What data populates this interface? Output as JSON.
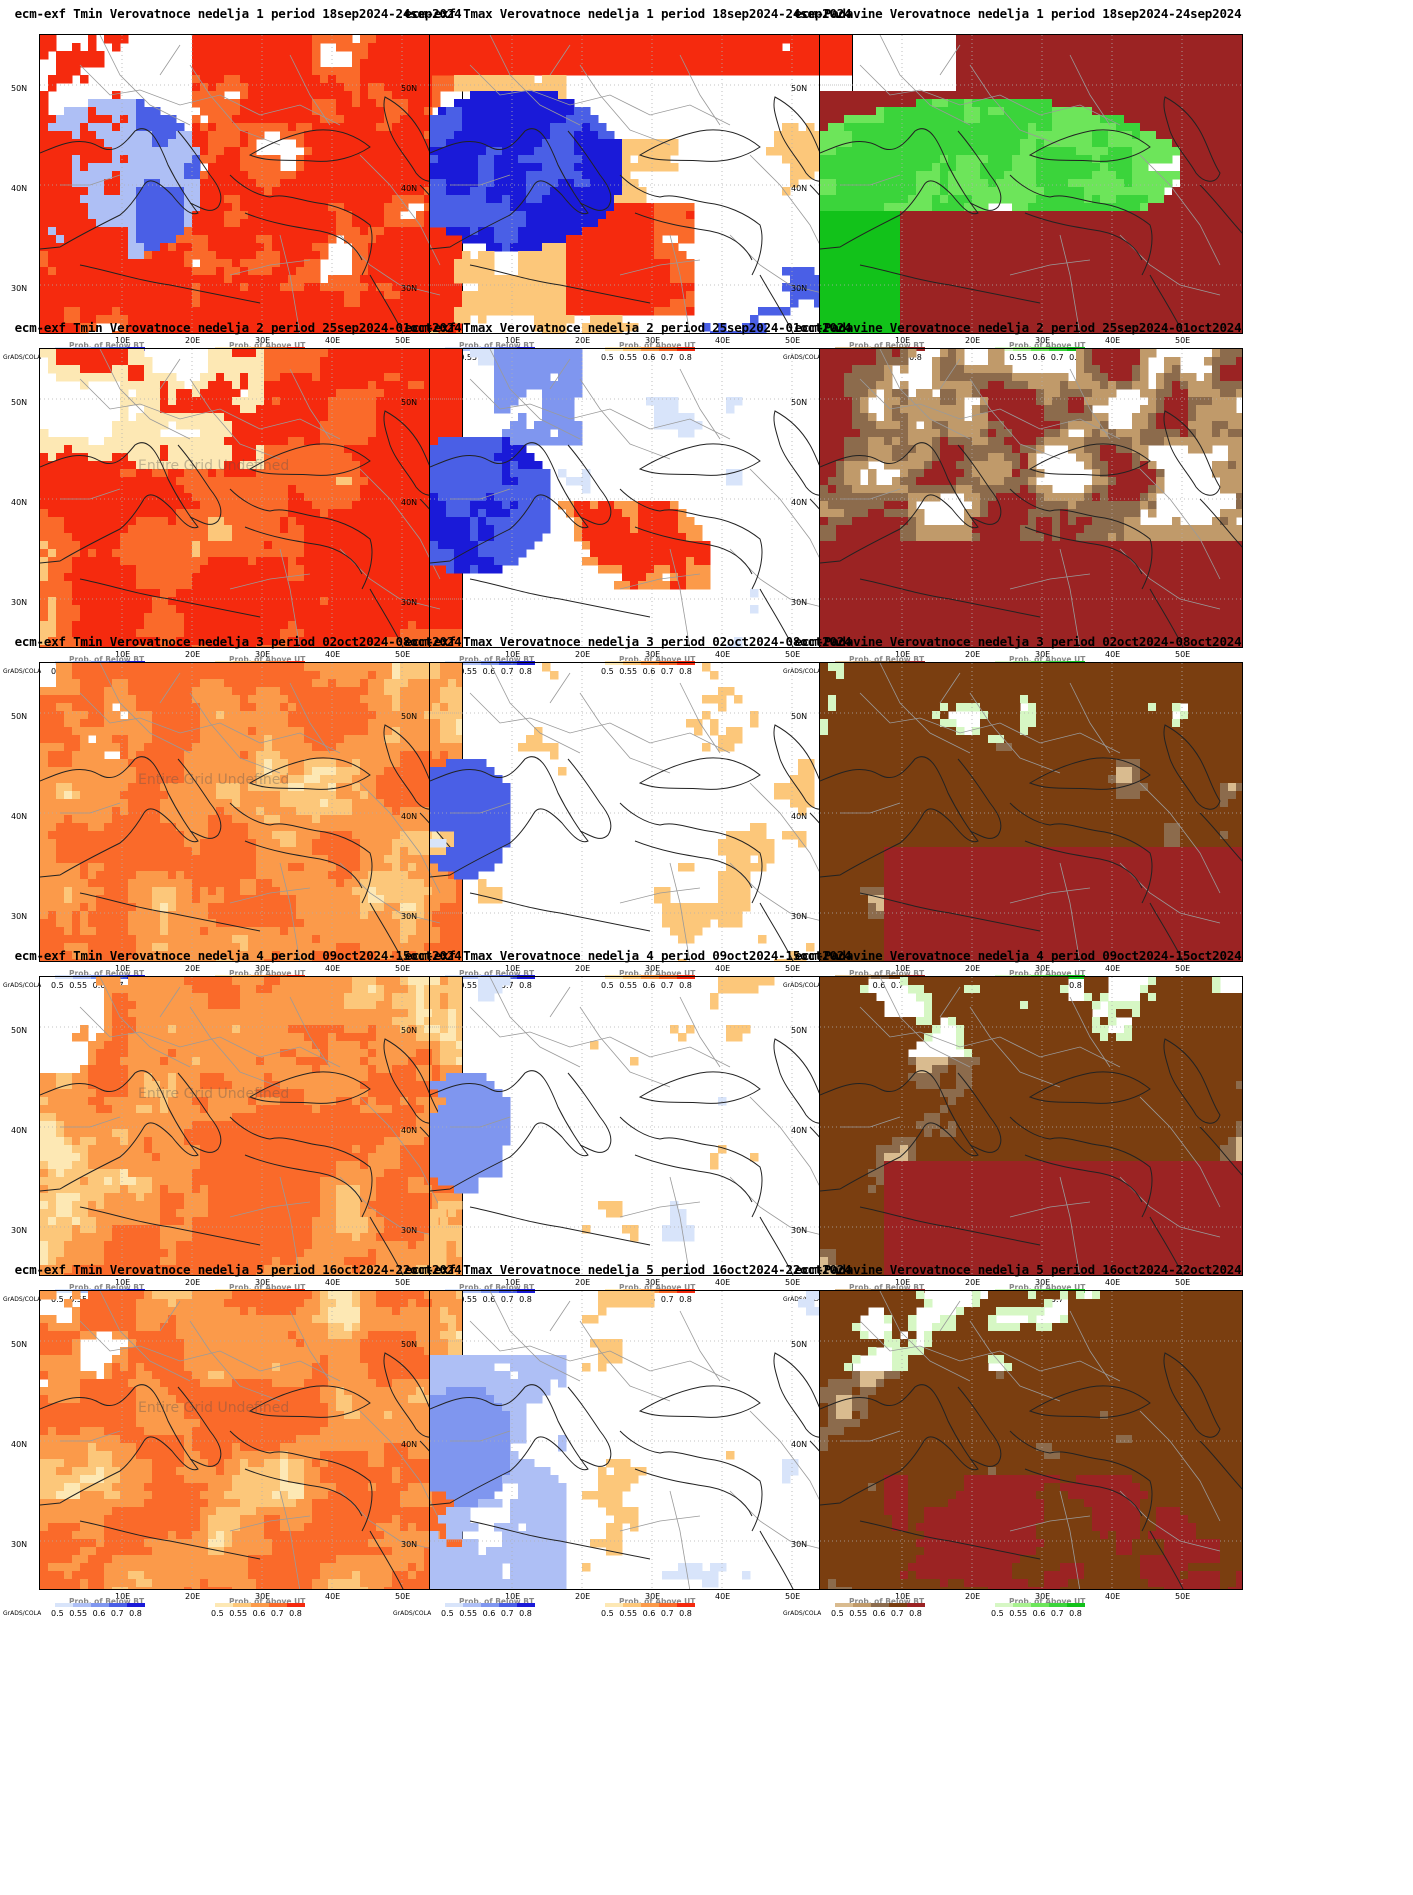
{
  "legend": {
    "below_label": "Prob. of Below BT",
    "above_label": "Prob. of Above UT",
    "ticks_below": "0.5 0.55 0.6 0.7 0.8",
    "ticks_above": "0.5 0.55 0.6 0.7 0.8",
    "credit": "GrADS/COLA"
  },
  "axes": {
    "lat_labels": [
      "50N",
      "40N",
      "30N"
    ],
    "lon_labels": [
      "10E",
      "20E",
      "30E",
      "40E",
      "50E"
    ]
  },
  "watermark": "Entire Grid Undefined",
  "colors": {
    "tmin_above": [
      "#fde8b4",
      "#fcc77a",
      "#fb9a4a",
      "#fa6a2a",
      "#f52a0e"
    ],
    "tmax_below": [
      "#d8e4fa",
      "#aebff5",
      "#7f96ef",
      "#4a5fe6",
      "#1a1ad8"
    ],
    "tmax_above": [
      "#fde8b4",
      "#fcc77a",
      "#fb9a4a",
      "#fa6a2a",
      "#f52a0e"
    ],
    "prec_below": [
      "#d9bb8f",
      "#c09a6a",
      "#8c6b4c",
      "#7a3e10",
      "#9b2323"
    ],
    "prec_above": [
      "#d6f7c4",
      "#a8f08f",
      "#6de55a",
      "#3bd43b",
      "#12c21a"
    ],
    "coast": "#222222",
    "border": "#9a9a9a"
  },
  "rows": [
    {
      "tmin_title": "ecm-exf Tmin Verovatnoce nedelja 1 period 18sep2024-24sep2024",
      "tmax_title": "ecm-exf Tmax Verovatnoce nedelja 1 period 18sep2024-24sep2024",
      "prec_title": "ecm-Padavine Verovatnoce nedelja 1 period 18sep2024-24sep2024",
      "tmin_level": 4,
      "tmax_mix": "strong",
      "prec_mix": "green",
      "watermark": false
    },
    {
      "tmin_title": "ecm-exf Tmin Verovatnoce nedelja 2 period 25sep2024-01oct2024",
      "tmax_title": "ecm-exf Tmax Verovatnoce nedelja 2 period 25sep2024-01oct2024",
      "prec_title": "ecm-Padavine Verovatnoce nedelja 2 period 25sep2024-01oct2024",
      "tmin_level": 4,
      "tmax_mix": "medium",
      "prec_mix": "brown-white",
      "watermark": true
    },
    {
      "tmin_title": "ecm-exf Tmin Verovatnoce nedelja 3 period 02oct2024-08oct2024",
      "tmax_title": "ecm-exf Tmax Verovatnoce nedelja 3 period 02oct2024-08oct2024",
      "prec_title": "ecm-Padavine Verovatnoce nedelja 3 period 02oct2024-08oct2024",
      "tmin_level": 3,
      "tmax_mix": "weak",
      "prec_mix": "brown",
      "watermark": true
    },
    {
      "tmin_title": "ecm-exf Tmin Verovatnoce nedelja 4 period 09oct2024-15oct2024",
      "tmax_title": "ecm-exf Tmax Verovatnoce nedelja 4 period 09oct2024-15oct2024",
      "prec_title": "ecm-Padavine Verovatnoce nedelja 4 period 09oct2024-15oct2024",
      "tmin_level": 3,
      "tmax_mix": "weak",
      "prec_mix": "brown",
      "watermark": true
    },
    {
      "tmin_title": "ecm-exf Tmin Verovatnoce nedelja 5 period 16oct2024-22oct2024",
      "tmax_title": "ecm-exf Tmax Verovatnoce nedelja 5 period 16oct2024-22oct2024",
      "prec_title": "ecm-Padavine Verovatnoce nedelja 5 period 16oct2024-22oct2024",
      "tmin_level": 3,
      "tmax_mix": "weak",
      "prec_mix": "brown",
      "watermark": true
    }
  ]
}
